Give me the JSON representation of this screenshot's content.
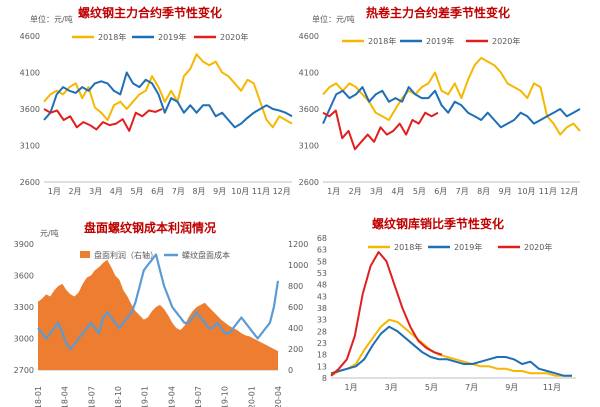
{
  "chart_data": [
    {
      "id": "rebar_main",
      "type": "line",
      "title": "螺纹钢主力合约季节性变化",
      "unit": "单位：元/吨",
      "x_ticks": [
        "1月",
        "2月",
        "3月",
        "4月",
        "5月",
        "6月",
        "7月",
        "8月",
        "9月",
        "10月",
        "11月",
        "12月"
      ],
      "ylim": [
        2600,
        4600
      ],
      "y_ticks": [
        "2600",
        "3100",
        "3600",
        "4100",
        "4600"
      ],
      "legend": "top",
      "series": [
        {
          "name": "2018年",
          "color": "#f5b800",
          "values": [
            3700,
            3800,
            3850,
            3800,
            3900,
            3950,
            3750,
            3900,
            3620,
            3550,
            3450,
            3650,
            3700,
            3600,
            3700,
            3800,
            3850,
            4050,
            3900,
            3700,
            3850,
            3700,
            4050,
            4150,
            4350,
            4250,
            4200,
            4250,
            4100,
            4050,
            3950,
            3850,
            4000,
            3950,
            3700,
            3450,
            3350,
            3500,
            3450,
            3400
          ]
        },
        {
          "name": "2019年",
          "color": "#1f6fb5",
          "values": [
            3450,
            3550,
            3800,
            3900,
            3850,
            3820,
            3900,
            3850,
            3950,
            3980,
            3950,
            3850,
            3800,
            4100,
            3950,
            3900,
            4000,
            3950,
            3800,
            3550,
            3750,
            3700,
            3550,
            3650,
            3550,
            3650,
            3650,
            3500,
            3550,
            3450,
            3350,
            3400,
            3480,
            3550,
            3600,
            3650,
            3600,
            3580,
            3550,
            3500
          ]
        },
        {
          "name": "2020年",
          "color": "#e02020",
          "values": [
            3600,
            3550,
            3580,
            3450,
            3500,
            3350,
            3420,
            3380,
            3320,
            3420,
            3380,
            3400,
            3460,
            3300,
            3550,
            3500,
            3580,
            3560,
            3600
          ]
        }
      ]
    },
    {
      "id": "hrc_spread",
      "type": "line",
      "title": "热卷主力合约差季节性变化",
      "unit": "单位：元/吨",
      "x_ticks": [
        "1月",
        "2月",
        "3月",
        "4月",
        "5月",
        "6月",
        "7月",
        "8月",
        "9月",
        "10月",
        "11月",
        "12月"
      ],
      "ylim": [
        2600,
        4600
      ],
      "y_ticks": [
        "2600",
        "3100",
        "3600",
        "4100",
        "4600"
      ],
      "legend": "top",
      "series": [
        {
          "name": "2018年",
          "color": "#f5b800",
          "values": [
            3800,
            3900,
            3950,
            3850,
            3950,
            3900,
            3800,
            3700,
            3550,
            3500,
            3450,
            3600,
            3750,
            3850,
            3800,
            3900,
            3950,
            4100,
            3850,
            3800,
            3950,
            3750,
            4000,
            4200,
            4300,
            4250,
            4200,
            4100,
            3950,
            3900,
            3850,
            3750,
            3950,
            3900,
            3500,
            3400,
            3250,
            3350,
            3400,
            3300
          ]
        },
        {
          "name": "2019年",
          "color": "#1f6fb5",
          "values": [
            3400,
            3600,
            3800,
            3850,
            3750,
            3800,
            3900,
            3700,
            3800,
            3850,
            3700,
            3750,
            3700,
            3900,
            3800,
            3750,
            3750,
            3850,
            3650,
            3550,
            3700,
            3650,
            3550,
            3500,
            3450,
            3550,
            3450,
            3350,
            3400,
            3450,
            3550,
            3500,
            3400,
            3450,
            3500,
            3550,
            3600,
            3500,
            3550,
            3600
          ]
        },
        {
          "name": "2020年",
          "color": "#e02020",
          "values": [
            3550,
            3500,
            3580,
            3200,
            3300,
            3050,
            3150,
            3250,
            3150,
            3350,
            3250,
            3300,
            3400,
            3250,
            3450,
            3400,
            3550,
            3500,
            3550
          ]
        }
      ]
    },
    {
      "id": "profit_cost",
      "type": "area+line",
      "title": "盘面螺纹钢成本利润情况",
      "unit": "元/吨",
      "x_ticks": [
        "18-01",
        "18-04",
        "18-07",
        "18-10",
        "19-01",
        "19-04",
        "19-07",
        "19-10",
        "20-01",
        "20-04"
      ],
      "left_axis": {
        "ylim": [
          2700,
          3900
        ],
        "ticks": [
          "2700",
          "3000",
          "3300",
          "3600",
          "3900"
        ]
      },
      "right_axis": {
        "ylim": [
          0,
          1200
        ],
        "ticks": [
          "0",
          "200",
          "400",
          "600",
          "800",
          "1000",
          "1200"
        ]
      },
      "legend": "top",
      "series": [
        {
          "name": "盘面利润（右轴）",
          "color": "#ed7d31",
          "axis": "right",
          "kind": "area",
          "values": [
            650,
            680,
            720,
            700,
            760,
            800,
            820,
            760,
            720,
            700,
            740,
            820,
            880,
            900,
            950,
            980,
            1020,
            1050,
            980,
            900,
            860,
            760,
            700,
            620,
            560,
            520,
            480,
            500,
            560,
            600,
            620,
            580,
            520,
            450,
            400,
            380,
            420,
            500,
            560,
            600,
            620,
            640,
            600,
            560,
            520,
            480,
            450,
            420,
            400,
            380,
            350,
            330,
            320,
            300,
            280,
            260,
            240,
            220,
            200,
            180
          ]
        },
        {
          "name": "螺纹盘面成本",
          "color": "#5b9bd5",
          "axis": "left",
          "kind": "line",
          "values": [
            3100,
            3050,
            3000,
            3050,
            3100,
            3150,
            3050,
            2950,
            2900,
            2950,
            3000,
            3050,
            3100,
            3150,
            3100,
            3050,
            3200,
            3250,
            3200,
            3150,
            3100,
            3150,
            3200,
            3250,
            3350,
            3500,
            3650,
            3700,
            3750,
            3800,
            3650,
            3500,
            3400,
            3300,
            3250,
            3200,
            3150,
            3150,
            3200,
            3250,
            3200,
            3150,
            3100,
            3100,
            3150,
            3100,
            3050,
            3050,
            3100,
            3150,
            3200,
            3150,
            3100,
            3050,
            3000,
            3050,
            3100,
            3150,
            3300,
            3550
          ]
        }
      ]
    },
    {
      "id": "rebar_inventory_ratio",
      "type": "line",
      "title": "螺纹钢库销比季节性变化",
      "unit": "",
      "x_ticks": [
        "1月",
        "3月",
        "5月",
        "7月",
        "9月",
        "11月"
      ],
      "ylim": [
        8,
        68
      ],
      "y_ticks": [
        "8",
        "13",
        "18",
        "23",
        "28",
        "33",
        "38",
        "43",
        "48",
        "53",
        "58",
        "63",
        "68"
      ],
      "legend": "top",
      "series": [
        {
          "name": "2018年",
          "color": "#f5b800",
          "values": [
            9,
            11,
            12,
            14,
            20,
            25,
            30,
            33,
            32,
            29,
            26,
            23,
            20,
            18,
            17,
            16,
            15,
            14,
            13,
            13,
            12,
            12,
            11,
            11,
            10,
            10,
            10,
            9,
            9,
            9
          ]
        },
        {
          "name": "2019年",
          "color": "#1f6fb5",
          "values": [
            10,
            11,
            12,
            13,
            16,
            22,
            27,
            30,
            28,
            25,
            22,
            19,
            17,
            16,
            16,
            15,
            14,
            14,
            15,
            16,
            17,
            17,
            16,
            14,
            15,
            12,
            11,
            10,
            9,
            9
          ]
        },
        {
          "name": "2020年",
          "color": "#e02020",
          "values": [
            9,
            12,
            16,
            26,
            44,
            56,
            62,
            58,
            48,
            38,
            30,
            24,
            21,
            19,
            18
          ]
        }
      ]
    }
  ]
}
